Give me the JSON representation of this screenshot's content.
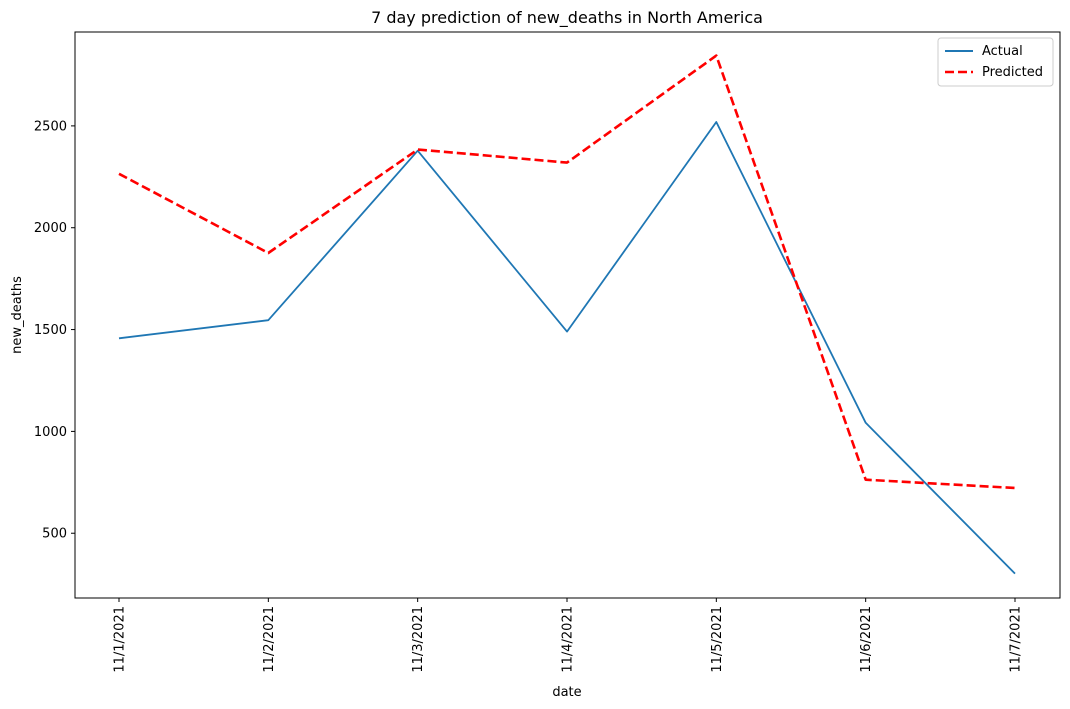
{
  "chart_data": {
    "type": "line",
    "title": "7 day prediction of new_deaths in North America",
    "xlabel": "date",
    "ylabel": "new_deaths",
    "categories": [
      "11/1/2021",
      "11/2/2021",
      "11/3/2021",
      "11/4/2021",
      "11/5/2021",
      "11/6/2021",
      "11/7/2021"
    ],
    "ylim": [
      182,
      2961
    ],
    "yticks": [
      500,
      1000,
      1500,
      2000,
      2500
    ],
    "grid": false,
    "legend_position": "top-right",
    "series": [
      {
        "name": "Actual",
        "values": [
          1457,
          1546,
          2378,
          1490,
          2519,
          1042,
          302
        ],
        "color": "#1f77b4",
        "style": "solid"
      },
      {
        "name": "Predicted",
        "values": [
          2265,
          1876,
          2384,
          2320,
          2845,
          763,
          722
        ],
        "color": "#ff0000",
        "style": "dashed"
      }
    ]
  }
}
